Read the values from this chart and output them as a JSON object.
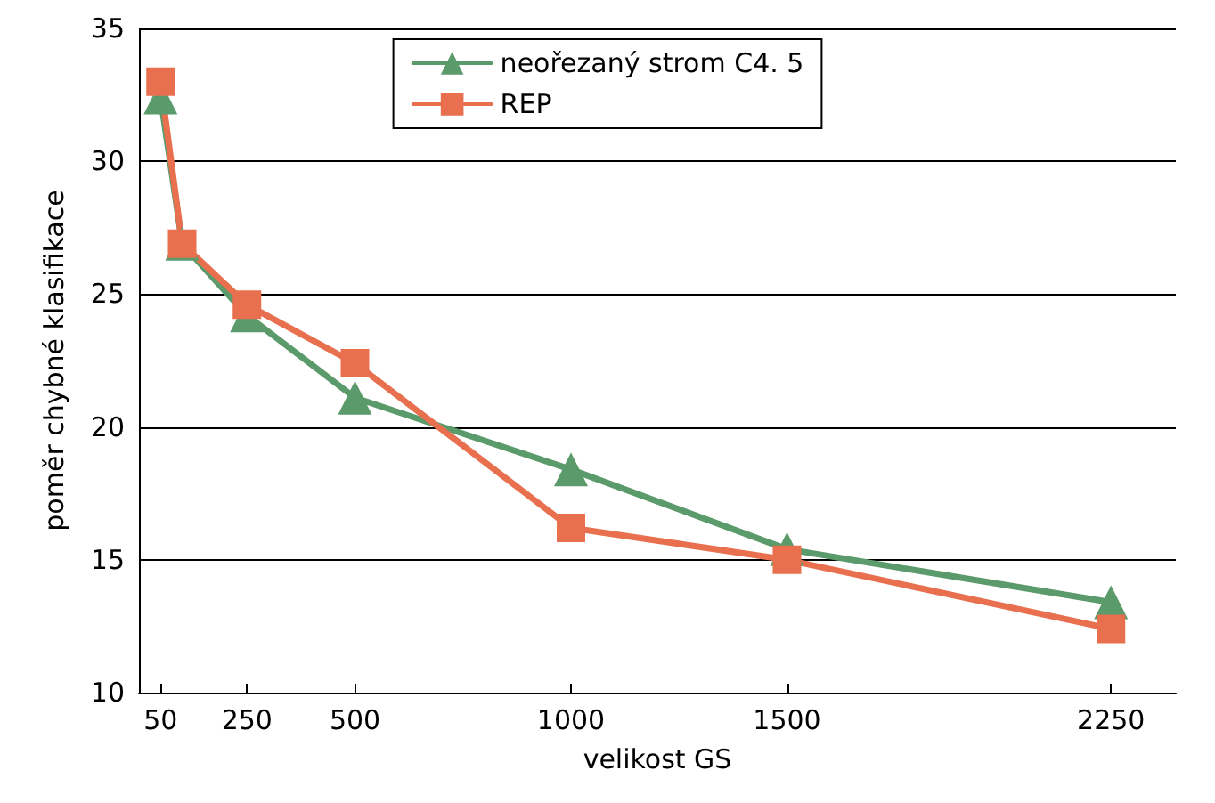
{
  "chart_data": {
    "type": "line",
    "xlabel": "velikost GS",
    "ylabel": "poměr chybné klasifikace",
    "x": [
      50,
      100,
      250,
      500,
      1000,
      1500,
      2250
    ],
    "series": [
      {
        "name": "neořezaný strom C4. 5",
        "color": "#5b9a6b",
        "marker": "triangle",
        "values": [
          32.4,
          26.9,
          24.2,
          21.1,
          18.4,
          15.4,
          13.4
        ]
      },
      {
        "name": "REP",
        "color": "#e8704f",
        "marker": "square",
        "values": [
          33.0,
          26.9,
          24.6,
          22.4,
          16.2,
          15.0,
          12.4
        ]
      }
    ],
    "xlim": [
      0,
      2400
    ],
    "xticks": [
      50,
      250,
      500,
      1000,
      1500,
      2250
    ],
    "ylim": [
      10,
      35
    ],
    "yticks": [
      10,
      15,
      20,
      25,
      30,
      35
    ],
    "grid": "y",
    "legend": "top",
    "line_style": "solid"
  }
}
